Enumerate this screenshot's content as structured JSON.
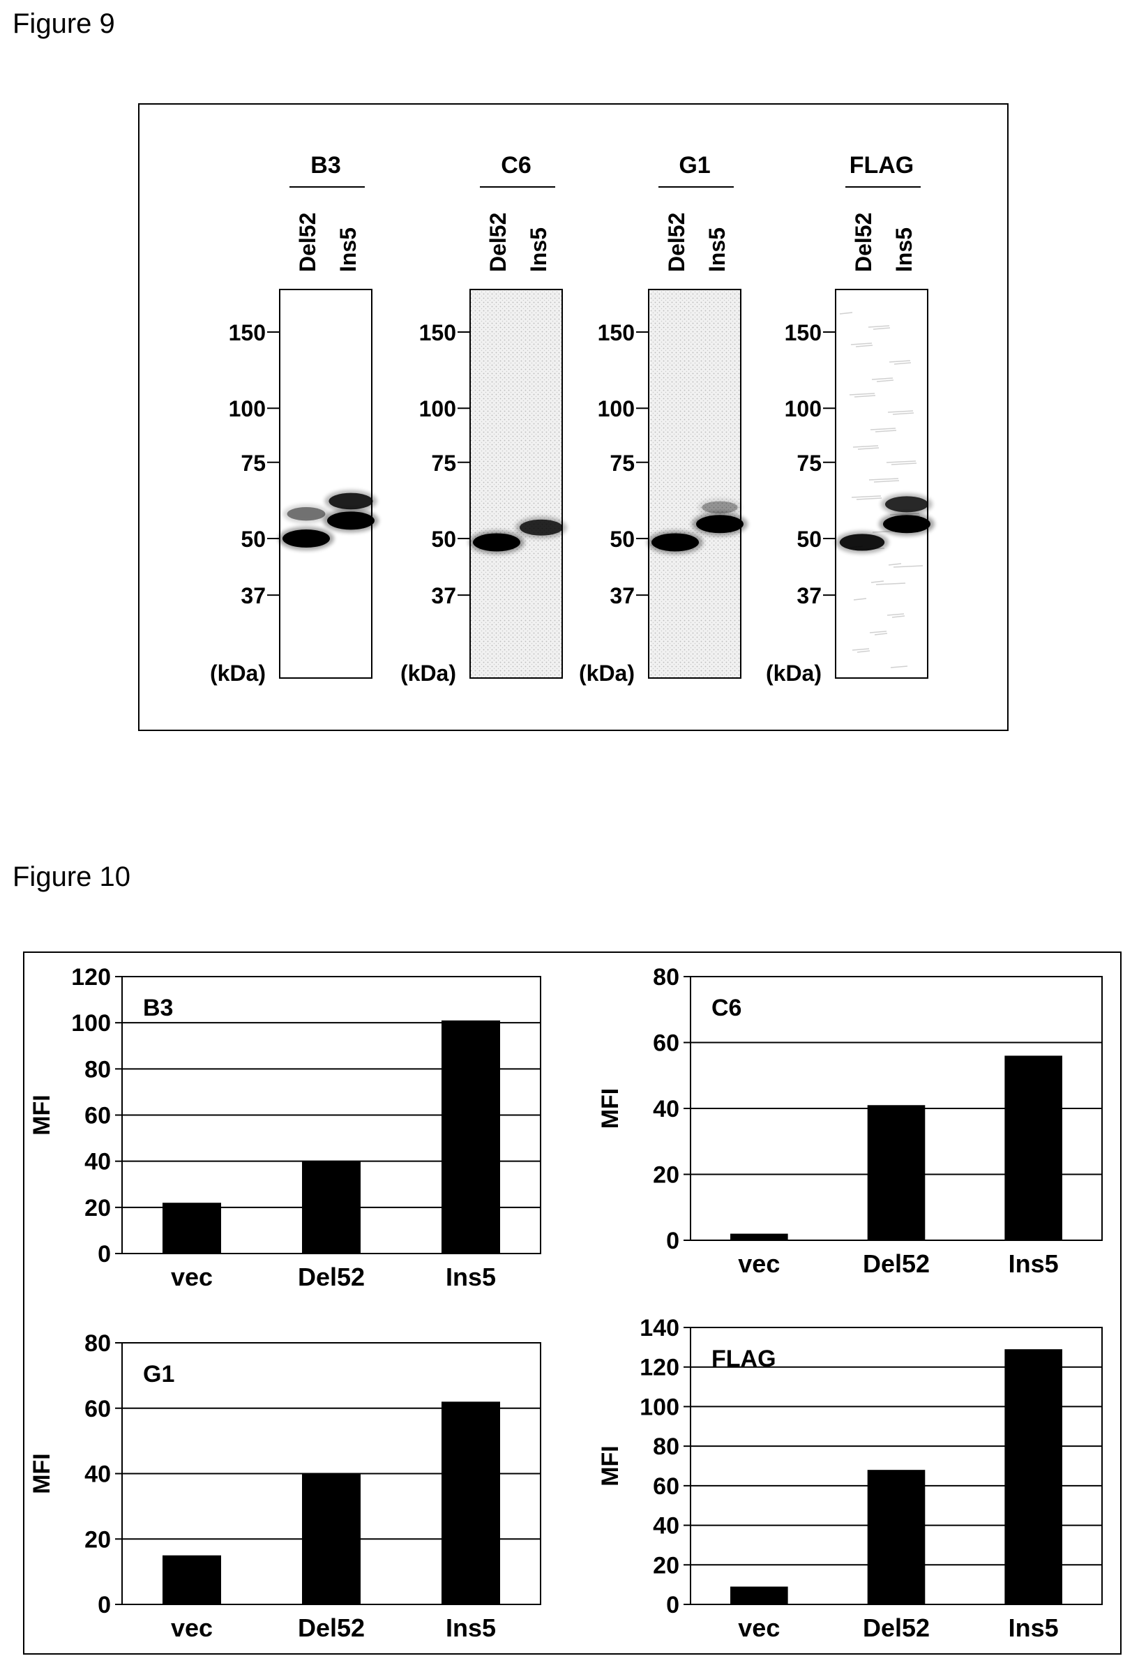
{
  "figure9": {
    "title": "Figure 9",
    "unit_label": "(kDa)",
    "markers": [
      "150",
      "100",
      "75",
      "50",
      "37"
    ],
    "marker_values": [
      150,
      100,
      75,
      50,
      37
    ],
    "blots": [
      {
        "antibody": "B3",
        "lanes": [
          "Del52",
          "Ins5"
        ],
        "background": "white",
        "bands": [
          [
            {
              "kda": 50,
              "strength": 1.0
            },
            {
              "kda": 57,
              "strength": 0.45
            }
          ],
          [
            {
              "kda": 55,
              "strength": 1.0
            },
            {
              "kda": 61,
              "strength": 0.8
            }
          ]
        ]
      },
      {
        "antibody": "C6",
        "lanes": [
          "Del52",
          "Ins5"
        ],
        "background": "stipple",
        "bands": [
          [
            {
              "kda": 49,
              "strength": 1.0
            }
          ],
          [
            {
              "kda": 53,
              "strength": 0.75
            }
          ]
        ]
      },
      {
        "antibody": "G1",
        "lanes": [
          "Del52",
          "Ins5"
        ],
        "background": "stipple",
        "bands": [
          [
            {
              "kda": 49,
              "strength": 1.0
            }
          ],
          [
            {
              "kda": 54,
              "strength": 1.0
            },
            {
              "kda": 59,
              "strength": 0.3
            }
          ]
        ]
      },
      {
        "antibody": "FLAG",
        "lanes": [
          "Del52",
          "Ins5"
        ],
        "background": "streaks",
        "bands": [
          [
            {
              "kda": 49,
              "strength": 0.85
            }
          ],
          [
            {
              "kda": 54,
              "strength": 1.0
            },
            {
              "kda": 60,
              "strength": 0.75
            }
          ]
        ]
      }
    ]
  },
  "figure10": {
    "title": "Figure 10",
    "charts": [
      {
        "label": "B3",
        "ylabel": "MFI",
        "ymax": 120,
        "step": 20
      },
      {
        "label": "C6",
        "ylabel": "MFI",
        "ymax": 80,
        "step": 20
      },
      {
        "label": "G1",
        "ylabel": "MFI",
        "ymax": 80,
        "step": 20
      },
      {
        "label": "FLAG",
        "ylabel": "MFI",
        "ymax": 140,
        "step": 20
      }
    ]
  },
  "chart_data": [
    {
      "type": "bar",
      "title": "B3",
      "categories": [
        "vec",
        "Del52",
        "Ins5"
      ],
      "values": [
        22,
        40,
        101
      ],
      "xlabel": "",
      "ylabel": "MFI",
      "ylim": [
        0,
        120
      ],
      "yticks": [
        0,
        20,
        40,
        60,
        80,
        100,
        120
      ],
      "grid": true
    },
    {
      "type": "bar",
      "title": "C6",
      "categories": [
        "vec",
        "Del52",
        "Ins5"
      ],
      "values": [
        2,
        41,
        56
      ],
      "xlabel": "",
      "ylabel": "MFI",
      "ylim": [
        0,
        80
      ],
      "yticks": [
        0,
        20,
        40,
        60,
        80
      ],
      "grid": true
    },
    {
      "type": "bar",
      "title": "G1",
      "categories": [
        "vec",
        "Del52",
        "Ins5"
      ],
      "values": [
        15,
        40,
        62
      ],
      "xlabel": "",
      "ylabel": "MFI",
      "ylim": [
        0,
        80
      ],
      "yticks": [
        0,
        20,
        40,
        60,
        80
      ],
      "grid": true
    },
    {
      "type": "bar",
      "title": "FLAG",
      "categories": [
        "vec",
        "Del52",
        "Ins5"
      ],
      "values": [
        9,
        68,
        129
      ],
      "xlabel": "",
      "ylabel": "MFI",
      "ylim": [
        0,
        140
      ],
      "yticks": [
        0,
        20,
        40,
        60,
        80,
        100,
        120,
        140
      ],
      "grid": true
    }
  ]
}
